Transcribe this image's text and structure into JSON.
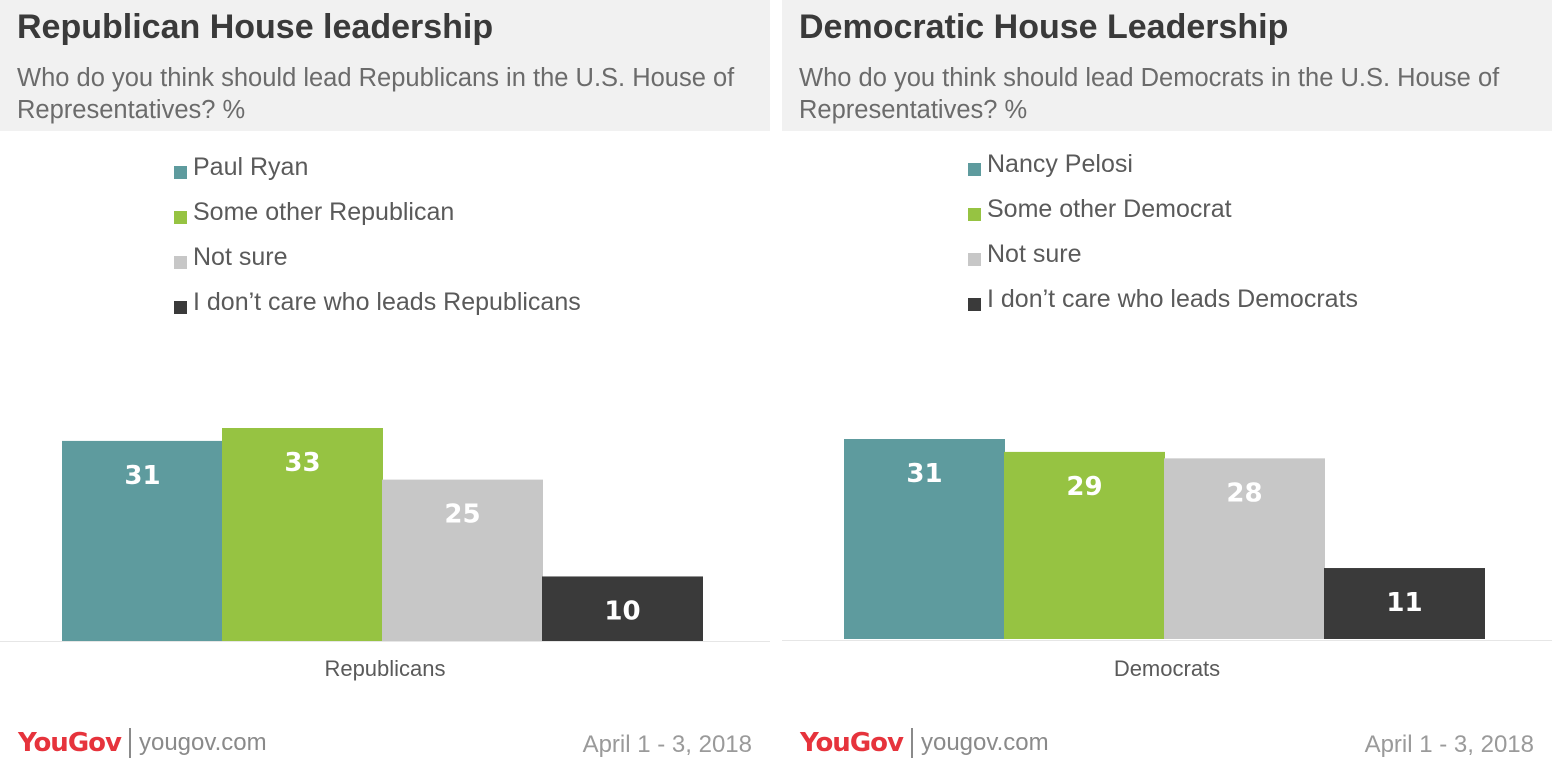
{
  "colors": {
    "series": [
      "#5e9b9e",
      "#96c342",
      "#c7c7c7",
      "#3a3a3a"
    ],
    "label_text": [
      "#ffffff",
      "#ffffff",
      "#ffffff",
      "#ffffff"
    ],
    "brand_red": "#e6333c"
  },
  "panels": [
    {
      "title": "Republican House leadership",
      "subtitle": "Who do you think should lead Republicans in the U.S. House of Representatives? %",
      "legend": [
        "Paul Ryan",
        "Some other Republican",
        "Not sure",
        "I don’t care who leads Republicans"
      ],
      "footer": {
        "logo": "YouGov",
        "site": "yougov.com",
        "date": "April 1 - 3, 2018"
      }
    },
    {
      "title": "Democratic House Leadership",
      "subtitle": "Who do you think should lead Democrats in the U.S. House of Representatives? %",
      "legend": [
        "Nancy Pelosi",
        "Some other Democrat",
        "Not sure",
        "I don’t care who leads Democrats"
      ],
      "footer": {
        "logo": "YouGov",
        "site": "yougov.com",
        "date": "April 1 - 3, 2018"
      }
    }
  ],
  "chart_data": [
    {
      "type": "bar",
      "title": "Republican House leadership",
      "subtitle": "Who do you think should lead Republicans in the U.S. House of Representatives? %",
      "categories": [
        "Republicans"
      ],
      "series": [
        {
          "name": "Paul Ryan",
          "values": [
            31
          ]
        },
        {
          "name": "Some other Republican",
          "values": [
            33
          ]
        },
        {
          "name": "Not sure",
          "values": [
            25
          ]
        },
        {
          "name": "I don’t care who leads Republicans",
          "values": [
            10
          ]
        }
      ],
      "xlabel": "Republicans",
      "ylabel": "",
      "ylim": [
        0,
        33
      ],
      "grid": false,
      "legend_position": "top"
    },
    {
      "type": "bar",
      "title": "Democratic House Leadership",
      "subtitle": "Who do you think should lead Democrats in the U.S. House of Representatives? %",
      "categories": [
        "Democrats"
      ],
      "series": [
        {
          "name": "Nancy Pelosi",
          "values": [
            31
          ]
        },
        {
          "name": "Some other Democrat",
          "values": [
            29
          ]
        },
        {
          "name": "Not sure",
          "values": [
            28
          ]
        },
        {
          "name": "I don’t care who leads Democrats",
          "values": [
            11
          ]
        }
      ],
      "xlabel": "Democrats",
      "ylabel": "",
      "ylim": [
        0,
        31
      ],
      "grid": false,
      "legend_position": "top"
    }
  ]
}
